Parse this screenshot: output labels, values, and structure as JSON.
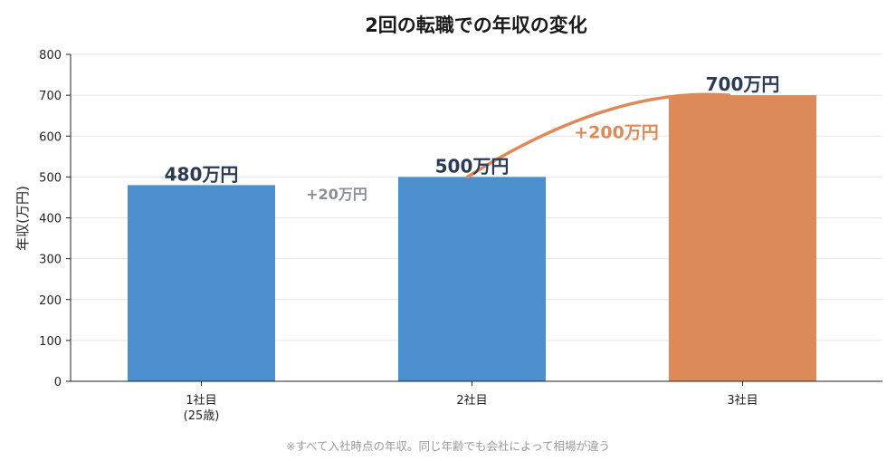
{
  "chart_data": {
    "type": "bar",
    "title": "2回の転職での年収の変化",
    "ylabel": "年収(万円)",
    "xlabel": "",
    "ylim": [
      0,
      800
    ],
    "yticks": [
      0,
      100,
      200,
      300,
      400,
      500,
      600,
      700,
      800
    ],
    "grid": true,
    "categories": [
      "1社目",
      "2社目",
      "3社目"
    ],
    "category_sublabels": [
      "(25歳)",
      "",
      ""
    ],
    "values": [
      480,
      500,
      700
    ],
    "value_labels": [
      "480万円",
      "500万円",
      "700万円"
    ],
    "bar_colors": [
      "#4b8fcc",
      "#4b8fcc",
      "#dd8a58"
    ],
    "annotations": [
      {
        "text": "+20万円",
        "color": "#8a8f98",
        "between": [
          0,
          1
        ]
      },
      {
        "text": "+200万円",
        "color": "#dd8a58",
        "between": [
          1,
          2
        ],
        "arrow": true
      }
    ],
    "footnote": "※すべて入社時点の年収。同じ年齢でも会社によって相場が違う"
  }
}
